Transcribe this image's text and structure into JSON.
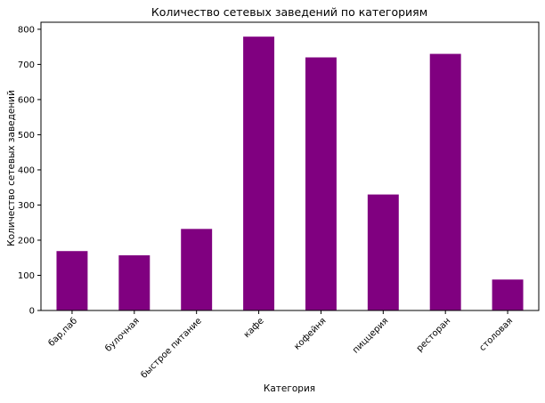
{
  "chart_data": {
    "type": "bar",
    "title": "Количество сетевых заведений по категориям",
    "xlabel": "Категория",
    "ylabel": "Количество сетевых заведений",
    "categories": [
      "бар,паб",
      "булочная",
      "быстрое питание",
      "кафе",
      "кофейня",
      "пиццерия",
      "ресторан",
      "столовая"
    ],
    "values": [
      169,
      157,
      232,
      779,
      720,
      330,
      730,
      88
    ],
    "ylim": [
      0,
      820
    ],
    "yticks": [
      0,
      100,
      200,
      300,
      400,
      500,
      600,
      700,
      800
    ],
    "grid": false,
    "bar_color": "#800080",
    "axis_color": "#000000"
  }
}
